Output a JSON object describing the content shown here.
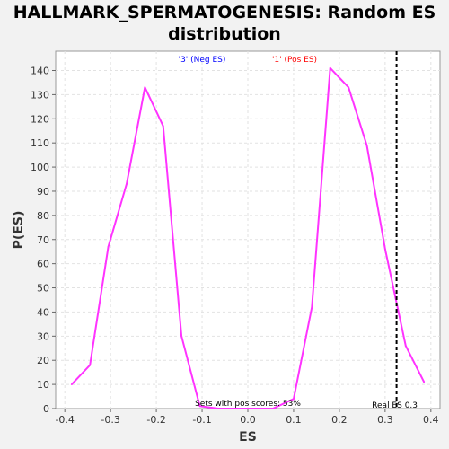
{
  "chart_data": {
    "type": "line",
    "title": "HALLMARK_SPERMATOGENESIS: Random ES distribution",
    "title_lines": [
      "HALLMARK_SPERMATOGENESIS: Random ES",
      "distribution"
    ],
    "xlabel": "ES",
    "ylabel": "P(ES)",
    "xlim": [
      -0.42,
      0.42
    ],
    "ylim": [
      0,
      148
    ],
    "xticks": [
      -0.4,
      -0.3,
      -0.2,
      -0.1,
      0.0,
      0.1,
      0.2,
      0.3,
      0.4
    ],
    "xtick_labels": [
      "-0.4",
      "-0.3",
      "-0.2",
      "-0.1",
      "0.0",
      "0.1",
      "0.2",
      "0.3",
      "0.4"
    ],
    "yticks": [
      0,
      10,
      20,
      30,
      40,
      50,
      60,
      70,
      80,
      90,
      100,
      110,
      120,
      130,
      140
    ],
    "grid": true,
    "series": [
      {
        "color": "#ff33ff",
        "x": [
          -0.385,
          -0.345,
          -0.305,
          -0.265,
          -0.225,
          -0.185,
          -0.145,
          -0.105,
          -0.065,
          -0.025,
          0.015,
          0.055,
          0.1,
          0.14,
          0.18,
          0.22,
          0.26,
          0.3,
          0.345,
          0.385
        ],
        "y": [
          10,
          18,
          67,
          93,
          133,
          117,
          30,
          1,
          0,
          0,
          0,
          0,
          4,
          42,
          141,
          133,
          109,
          66,
          26,
          11
        ]
      }
    ],
    "real_es": {
      "value": 0.325,
      "label": "Real ES 0.3",
      "color": "#000000"
    },
    "annotations": {
      "neg_label": {
        "text": "'3' (Neg ES)",
        "color": "#0000ff"
      },
      "pos_label": {
        "text": "'1' (Pos ES)",
        "color": "#ff0000"
      },
      "pos_scores": {
        "text": "Sets with pos scores: 53%",
        "color": "#000000"
      }
    }
  }
}
